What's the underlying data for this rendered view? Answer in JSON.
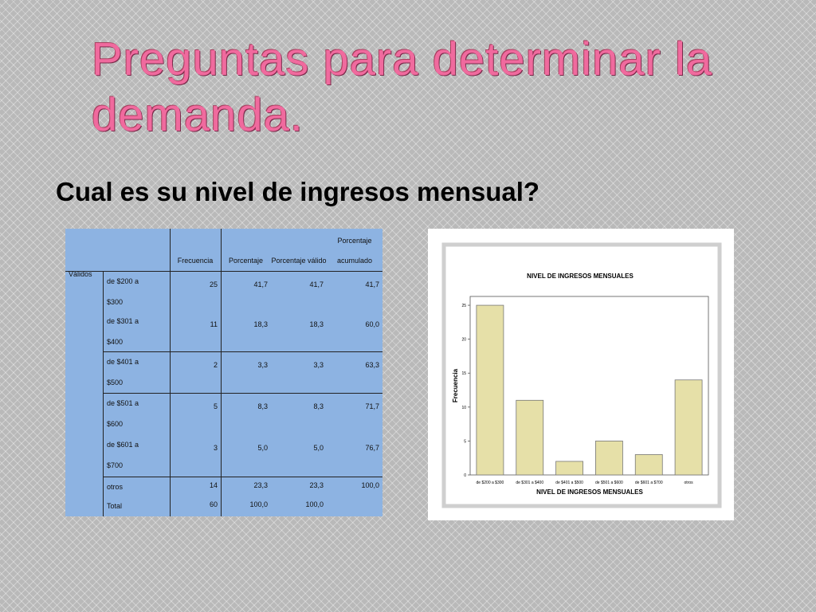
{
  "slide": {
    "title": "Preguntas para determinar la demanda.",
    "subtitle": "Cual es su nivel de ingresos mensual?"
  },
  "table": {
    "header": [
      "Frecuencia",
      "Porcentaje",
      "Porcentaje válido",
      "Porcentaje acumulado"
    ],
    "group": "Válidos",
    "rows": [
      [
        "de $200 a $300",
        25,
        "41,7",
        "41,7",
        "41,7"
      ],
      [
        "de $301 a $400",
        11,
        "18,3",
        "18,3",
        "60,0"
      ],
      [
        "de $401 a $500",
        2,
        "3,3",
        "3,3",
        "63,3"
      ],
      [
        "de $501 a $600",
        5,
        "8,3",
        "8,3",
        "71,7"
      ],
      [
        "de $601 a $700",
        3,
        "5,0",
        "5,0",
        "76,7"
      ],
      [
        "otros",
        14,
        "23,3",
        "23,3",
        "100,0"
      ],
      [
        "Total",
        60,
        "100,0",
        "100,0"
      ]
    ]
  },
  "chart_data": {
    "type": "bar",
    "title": "NIVEL DE INGRESOS MENSUALES",
    "x_label": "NIVEL DE INGRESOS MENSUALES",
    "y_label": "Frecuencia",
    "categories": [
      "de $200 a $300",
      "de $301 a $400",
      "de $401 a $500",
      "de $501 a $600",
      "de $601 a $700",
      "otros"
    ],
    "values": [
      25,
      11,
      2,
      5,
      3,
      14
    ],
    "color": "#e6e0a8",
    "ylim": [
      0,
      26.3
    ],
    "yticks": [
      0,
      5,
      10,
      15,
      20,
      25
    ]
  }
}
